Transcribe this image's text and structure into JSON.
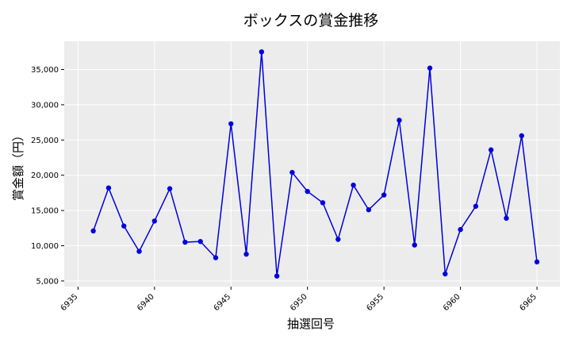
{
  "chart_data": {
    "type": "line",
    "title": "ボックスの賞金推移",
    "xlabel": "抽選回号",
    "ylabel": "賞金額（円）",
    "x_ticks": [
      6935,
      6940,
      6945,
      6950,
      6955,
      6960,
      6965
    ],
    "y_ticks": [
      5000,
      10000,
      15000,
      20000,
      25000,
      30000,
      35000
    ],
    "y_tick_labels": [
      "5,000",
      "10,000",
      "15,000",
      "20,000",
      "25,000",
      "30,000",
      "35,000"
    ],
    "xlim": [
      6934.1,
      6966.5
    ],
    "ylim": [
      4200,
      39000
    ],
    "grid": true,
    "series": [
      {
        "color": "#0000dd",
        "x": [
          6936,
          6937,
          6938,
          6939,
          6940,
          6941,
          6942,
          6943,
          6944,
          6945,
          6946,
          6947,
          6948,
          6949,
          6950,
          6951,
          6952,
          6953,
          6954,
          6955,
          6956,
          6957,
          6958,
          6959,
          6960,
          6961,
          6962,
          6963,
          6964,
          6965
        ],
        "y": [
          12100,
          18200,
          12800,
          9200,
          13500,
          18100,
          10500,
          10600,
          8300,
          27300,
          8800,
          37500,
          5700,
          20400,
          17700,
          16100,
          10900,
          18600,
          15100,
          17200,
          27800,
          10100,
          35200,
          6000,
          12300,
          15600,
          23600,
          13900,
          25600,
          7700
        ]
      }
    ]
  }
}
